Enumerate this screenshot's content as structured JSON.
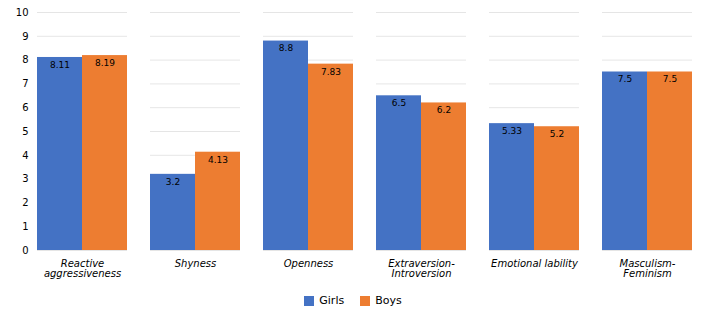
{
  "chart_data": {
    "type": "bar",
    "categories": [
      "Reactive aggressiveness",
      "Shyness",
      "Openness",
      "Extraversion- Introversion",
      "Emotional lability",
      "Masculism-Feminism"
    ],
    "series": [
      {
        "name": "Girls",
        "color": "#4472C4",
        "values": [
          8.11,
          3.2,
          8.8,
          6.5,
          5.33,
          7.5
        ]
      },
      {
        "name": "Boys",
        "color": "#ED7D31",
        "values": [
          8.19,
          4.13,
          7.83,
          6.2,
          5.2,
          7.5
        ]
      }
    ],
    "ylim": [
      0,
      10
    ],
    "yticks": [
      0,
      1,
      2,
      3,
      4,
      5,
      6,
      7,
      8,
      9,
      10
    ],
    "grid": true,
    "data_labels": true,
    "legend": "bottom"
  }
}
